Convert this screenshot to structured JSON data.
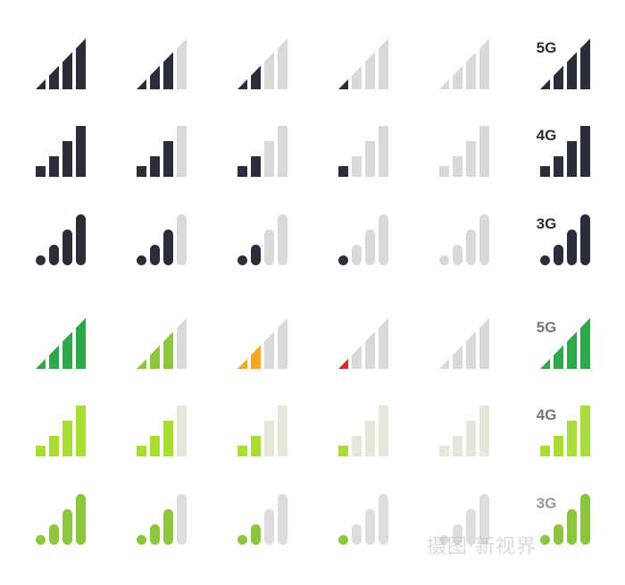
{
  "colors": {
    "dark": "#2b2d3b",
    "inactive": "#d9d9d9",
    "inactive_warm": "#e5e8d8",
    "green_full": "#2ea84a",
    "green_mid": "#8cc63f",
    "orange": "#f5a623",
    "red": "#d32f2f",
    "lime": "#aadd33"
  },
  "rows": [
    {
      "shape": "triangle",
      "label": "5G",
      "label_color": "#2b2d3b",
      "strength": [
        4,
        3,
        2,
        1,
        0,
        4
      ],
      "active": [
        "#2b2d3b",
        "#2b2d3b",
        "#2b2d3b",
        "#2b2d3b",
        "#2b2d3b",
        "#2b2d3b"
      ],
      "inactive": "#d9d9d9"
    },
    {
      "shape": "bars",
      "label": "4G",
      "label_color": "#2b2d3b",
      "strength": [
        4,
        3,
        2,
        1,
        0,
        4
      ],
      "active": [
        "#2b2d3b",
        "#2b2d3b",
        "#2b2d3b",
        "#2b2d3b",
        "#2b2d3b",
        "#2b2d3b"
      ],
      "inactive": "#d9d9d9"
    },
    {
      "shape": "rounded",
      "label": "3G",
      "label_color": "#2b2d3b",
      "strength": [
        4,
        3,
        2,
        1,
        0,
        4
      ],
      "active": [
        "#2b2d3b",
        "#2b2d3b",
        "#2b2d3b",
        "#2b2d3b",
        "#2b2d3b",
        "#2b2d3b"
      ],
      "inactive": "#d9d9d9"
    },
    {
      "shape": "triangle",
      "label": "5G",
      "label_color": "#777777",
      "strength": [
        4,
        3,
        2,
        1,
        0,
        4
      ],
      "active": [
        "#2ea84a",
        "#8cc63f",
        "#f5a623",
        "#d32f2f",
        "#2ea84a",
        "#2ea84a"
      ],
      "inactive": "#d9d9d9"
    },
    {
      "shape": "bars",
      "label": "4G",
      "label_color": "#777777",
      "strength": [
        4,
        3,
        2,
        1,
        0,
        4
      ],
      "active": [
        "#aadd33",
        "#aadd33",
        "#aadd33",
        "#aadd33",
        "#aadd33",
        "#aadd33"
      ],
      "inactive": "#e5e8d8"
    },
    {
      "shape": "rounded",
      "label": "3G",
      "label_color": "#999999",
      "strength": [
        4,
        3,
        2,
        1,
        0,
        4
      ],
      "active": [
        "#8cc63f",
        "#8cc63f",
        "#8cc63f",
        "#8cc63f",
        "#8cc63f",
        "#8cc63f"
      ],
      "inactive": "#dddddd"
    }
  ],
  "watermark": "摄图·新视界"
}
